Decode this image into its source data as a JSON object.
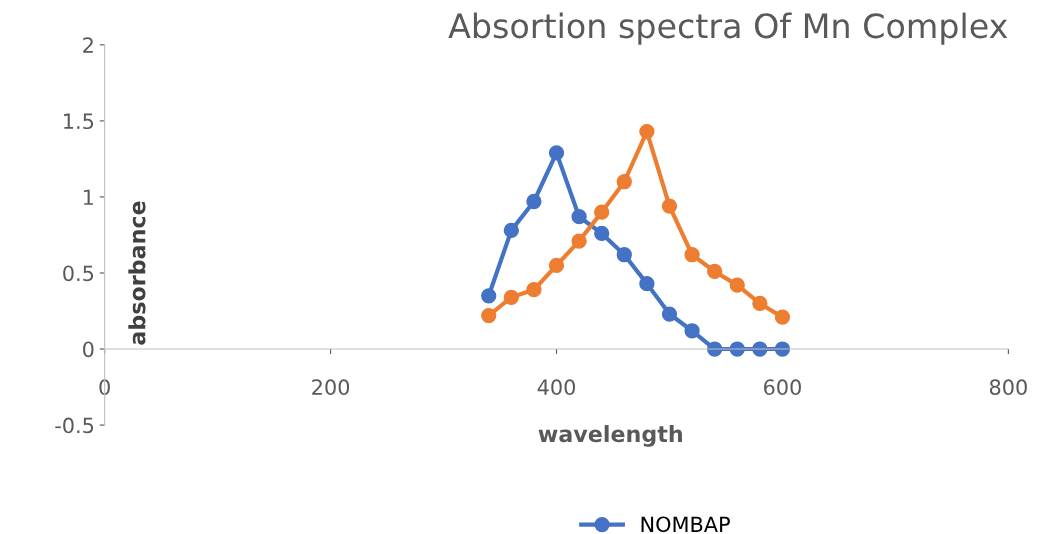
{
  "chart_data": {
    "type": "line",
    "title": "Absortion spectra Of Mn Complex",
    "xlabel": "wavelength",
    "ylabel": "absorbance",
    "x": [
      340,
      360,
      380,
      400,
      420,
      440,
      460,
      480,
      500,
      520,
      540,
      560,
      580,
      600
    ],
    "series": [
      {
        "name": "NOMBAP",
        "color": "#4472c4",
        "values": [
          0.35,
          0.78,
          0.97,
          1.29,
          0.87,
          0.76,
          0.62,
          0.43,
          0.23,
          0.12,
          0,
          0,
          0,
          0
        ]
      },
      {
        "color": "#ed7d31",
        "values": [
          0.22,
          0.34,
          0.39,
          0.55,
          0.71,
          0.9,
          1.1,
          1.43,
          0.94,
          0.62,
          0.51,
          0.42,
          0.3,
          0.21
        ]
      }
    ],
    "xlim": [
      0,
      800
    ],
    "xticks": [
      0,
      200,
      400,
      600,
      800
    ],
    "ylim": [
      -0.5,
      2
    ],
    "yticks": [
      -0.5,
      0,
      0.5,
      1,
      1.5,
      2
    ],
    "grid": false,
    "legend": "bottom",
    "marker": "circle",
    "line_style": "solid"
  }
}
